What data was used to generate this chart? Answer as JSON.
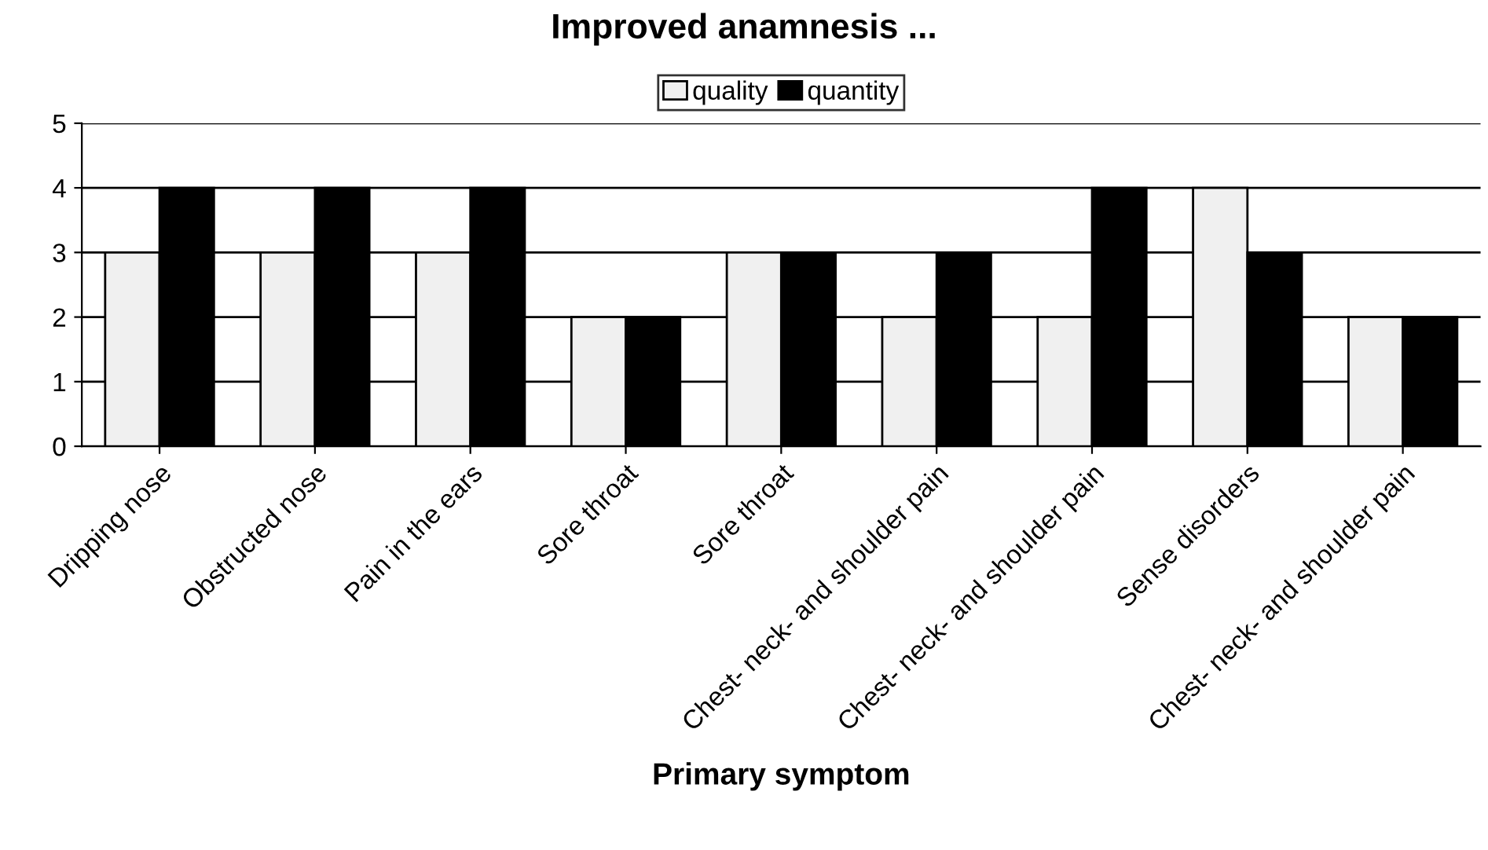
{
  "chart_data": {
    "type": "bar",
    "title": "Improved anamnesis ...",
    "xlabel": "Primary symptom",
    "categories": [
      "Dripping nose",
      "Obstructed nose",
      "Pain in the ears",
      "Sore throat",
      "Sore throat",
      "Chest- neck- and shoulder pain",
      "Chest- neck- and shoulder pain",
      "Sense disorders",
      "Chest- neck- and shoulder pain"
    ],
    "series": [
      {
        "name": "quality",
        "color": "#f0f0f0",
        "values": [
          3,
          3,
          3,
          2,
          3,
          2,
          2,
          4,
          2
        ]
      },
      {
        "name": "quantity",
        "color": "#000000",
        "values": [
          4,
          4,
          4,
          2,
          3,
          3,
          4,
          3,
          2
        ]
      }
    ],
    "ylim": [
      0,
      5
    ],
    "yticks": [
      0,
      1,
      2,
      3,
      4,
      5
    ],
    "grid": "y",
    "legend": "top"
  }
}
